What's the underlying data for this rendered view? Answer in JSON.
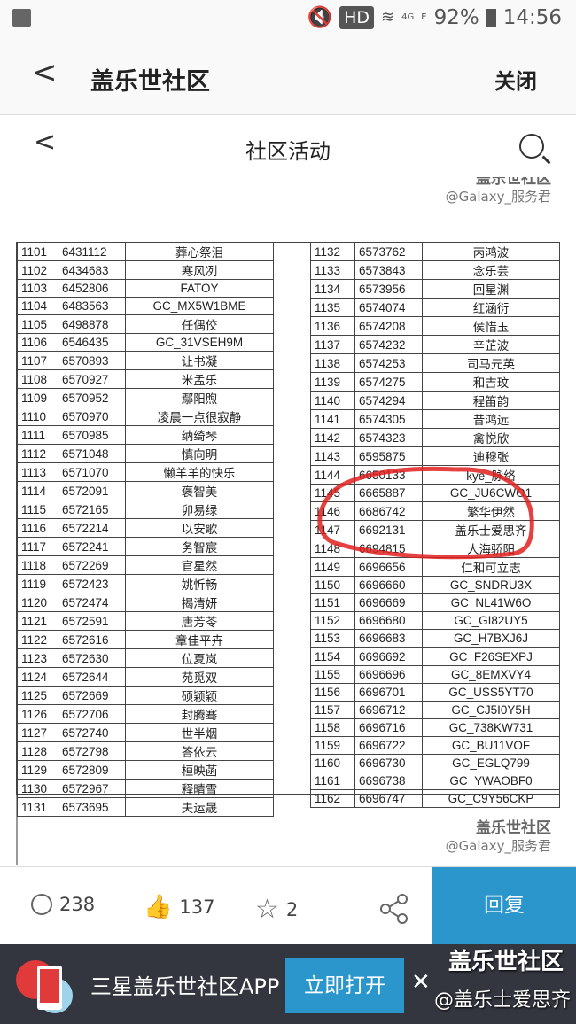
{
  "status": {
    "battery": "92%",
    "time": "14:56",
    "hd": "HD",
    "network": "4G",
    "network2": "E"
  },
  "header": {
    "title": "盖乐世社区",
    "close": "关闭"
  },
  "subheader": {
    "title": "社区活动"
  },
  "watermark": {
    "brand": "盖乐世社区",
    "handle": "@Galaxy_服务君"
  },
  "table_left": [
    [
      "1101",
      "6431112",
      "葬心祭泪"
    ],
    [
      "1102",
      "6434683",
      "寒风冽"
    ],
    [
      "1103",
      "6452806",
      "FATOY"
    ],
    [
      "1104",
      "6483563",
      "GC_MX5W1BME"
    ],
    [
      "1105",
      "6498878",
      "任偶佼"
    ],
    [
      "1106",
      "6546435",
      "GC_31VSEH9M"
    ],
    [
      "1107",
      "6570893",
      "让书凝"
    ],
    [
      "1108",
      "6570927",
      "米孟乐"
    ],
    [
      "1109",
      "6570952",
      "鄢阳煦"
    ],
    [
      "1110",
      "6570970",
      "凌晨一点很寂静"
    ],
    [
      "1111",
      "6570985",
      "纳绮琴"
    ],
    [
      "1112",
      "6571048",
      "慎向明"
    ],
    [
      "1113",
      "6571070",
      "懒羊羊的快乐"
    ],
    [
      "1114",
      "6572091",
      "褒智美"
    ],
    [
      "1115",
      "6572165",
      "卯易绿"
    ],
    [
      "1116",
      "6572214",
      "以安歌"
    ],
    [
      "1117",
      "6572241",
      "务智宸"
    ],
    [
      "1118",
      "6572269",
      "官星然"
    ],
    [
      "1119",
      "6572423",
      "姚忻畅"
    ],
    [
      "1120",
      "6572474",
      "揭清妍"
    ],
    [
      "1121",
      "6572591",
      "唐芳苓"
    ],
    [
      "1122",
      "6572616",
      "章佳平卉"
    ],
    [
      "1123",
      "6572630",
      "位夏岚"
    ],
    [
      "1124",
      "6572644",
      "苑觅双"
    ],
    [
      "1125",
      "6572669",
      "硕颖颖"
    ],
    [
      "1126",
      "6572706",
      "封腾骞"
    ],
    [
      "1127",
      "6572740",
      "世半烟"
    ],
    [
      "1128",
      "6572798",
      "答依云"
    ],
    [
      "1129",
      "6572809",
      "桓映菡"
    ],
    [
      "1130",
      "6572967",
      "释晴雪"
    ],
    [
      "1131",
      "6573695",
      "夫运晟"
    ]
  ],
  "table_right": [
    [
      "1132",
      "6573762",
      "丙鸿波"
    ],
    [
      "1133",
      "6573843",
      "念乐芸"
    ],
    [
      "1134",
      "6573956",
      "回星渊"
    ],
    [
      "1135",
      "6574074",
      "红涵衍"
    ],
    [
      "1136",
      "6574208",
      "侯惜玉"
    ],
    [
      "1137",
      "6574232",
      "辛芷波"
    ],
    [
      "1138",
      "6574253",
      "司马元英"
    ],
    [
      "1139",
      "6574275",
      "和吉玟"
    ],
    [
      "1140",
      "6574294",
      "程笛韵"
    ],
    [
      "1141",
      "6574305",
      "昔鸿远"
    ],
    [
      "1142",
      "6574323",
      "禽悦欣"
    ],
    [
      "1143",
      "6595875",
      "迪穆张"
    ],
    [
      "1144",
      "6650133",
      "kye_脉络"
    ],
    [
      "1145",
      "6665887",
      "GC_JU6CWO1"
    ],
    [
      "1146",
      "6686742",
      "繁华伊然"
    ],
    [
      "1147",
      "6692131",
      "盖乐士爱思齐"
    ],
    [
      "1148",
      "6694815",
      "人海骄阳"
    ],
    [
      "1149",
      "6696656",
      "仁和可立志"
    ],
    [
      "1150",
      "6696660",
      "GC_SNDRU3X"
    ],
    [
      "1151",
      "6696669",
      "GC_NL41W6O"
    ],
    [
      "1152",
      "6696680",
      "GC_GI82UY5"
    ],
    [
      "1153",
      "6696683",
      "GC_H7BXJ6J"
    ],
    [
      "1154",
      "6696692",
      "GC_F26SEXPJ"
    ],
    [
      "1155",
      "6696696",
      "GC_8EMXVY4"
    ],
    [
      "1156",
      "6696701",
      "GC_USS5YT70"
    ],
    [
      "1157",
      "6696712",
      "GC_CJ5I0Y5H"
    ],
    [
      "1158",
      "6696716",
      "GC_738KW731"
    ],
    [
      "1159",
      "6696722",
      "GC_BU11VOF"
    ],
    [
      "1160",
      "6696730",
      "GC_EGLQ799"
    ],
    [
      "1161",
      "6696738",
      "GC_YWAOBF0"
    ],
    [
      "1162",
      "6696747",
      "GC_C9Y56CKP"
    ]
  ],
  "bottom": {
    "comments": "238",
    "likes": "137",
    "favorites": "2",
    "reply": "回复"
  },
  "banner": {
    "title": "三星盖乐世社区APP",
    "open": "立即打开"
  },
  "overlay": {
    "brand": "盖乐世社区",
    "author": "@盖乐士爱思齐"
  },
  "colors": {
    "accent": "#2a96cb",
    "like": "#e03a3a",
    "annotation": "#e02020",
    "banner_bg": "#33353f"
  }
}
